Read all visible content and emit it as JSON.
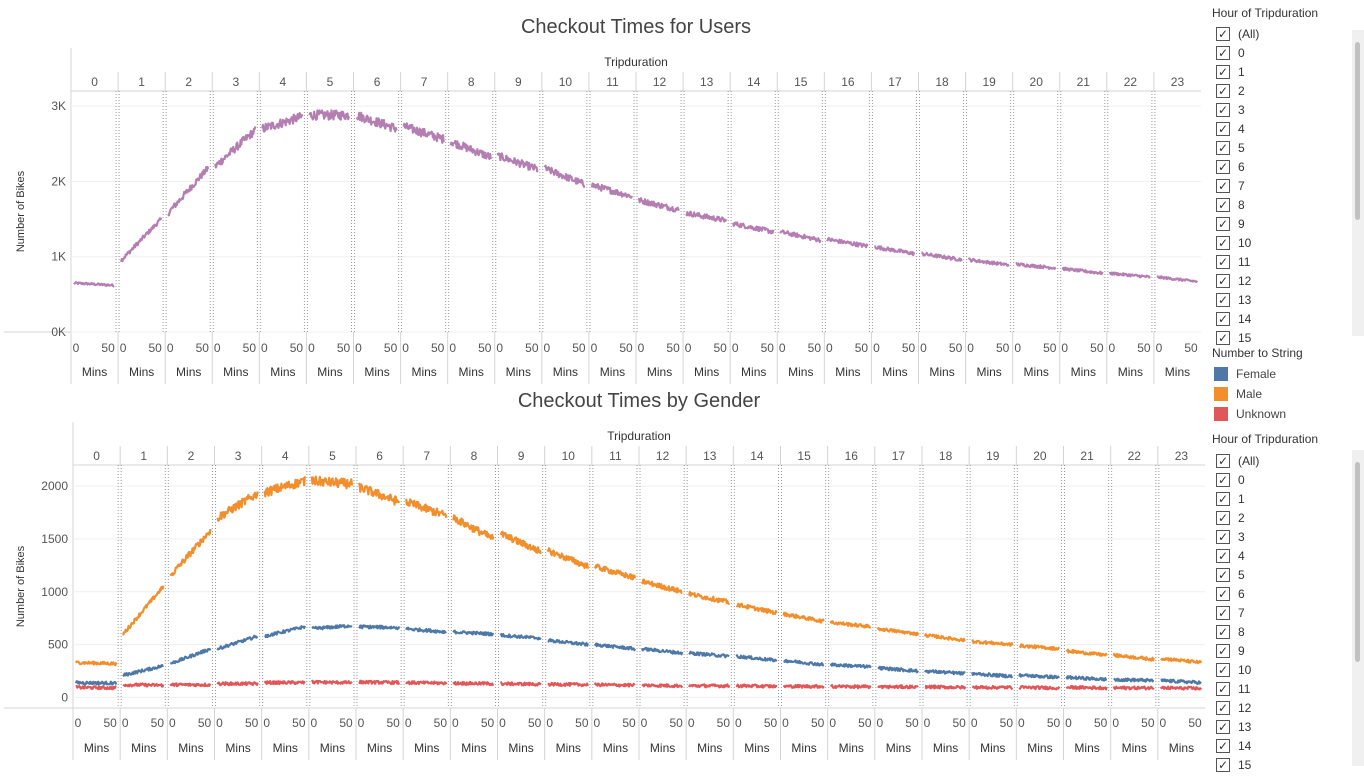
{
  "chart_data": [
    {
      "type": "line",
      "title": "Checkout Times for Users",
      "column_header": "Tripduration",
      "panels": [
        "0",
        "1",
        "2",
        "3",
        "4",
        "5",
        "6",
        "7",
        "8",
        "9",
        "10",
        "11",
        "12",
        "13",
        "14",
        "15",
        "16",
        "17",
        "18",
        "19",
        "20",
        "21",
        "22",
        "23"
      ],
      "panel_axis_ticks": [
        "0",
        "50"
      ],
      "panel_axis_label": "Mins",
      "ylabel": "Number of Bikes",
      "ylim": [
        0,
        3200
      ],
      "yticks": [
        {
          "value": 0,
          "label": "0K"
        },
        {
          "value": 1000,
          "label": "1K"
        },
        {
          "value": 2000,
          "label": "2K"
        },
        {
          "value": 3000,
          "label": "3K"
        }
      ],
      "series": [
        {
          "color": "#b57eb3",
          "start": [
            650,
            950,
            1580,
            2200,
            2700,
            2880,
            2880,
            2730,
            2530,
            2340,
            2170,
            1950,
            1750,
            1580,
            1440,
            1330,
            1230,
            1130,
            1040,
            960,
            900,
            840,
            780,
            730
          ],
          "end": [
            620,
            1500,
            2180,
            2680,
            2860,
            2880,
            2700,
            2560,
            2320,
            2160,
            1960,
            1800,
            1620,
            1480,
            1330,
            1220,
            1140,
            1040,
            960,
            890,
            850,
            780,
            730,
            670
          ]
        }
      ]
    },
    {
      "type": "line",
      "title": "Checkout Times by Gender",
      "column_header": "Tripduration",
      "panels": [
        "0",
        "1",
        "2",
        "3",
        "4",
        "5",
        "6",
        "7",
        "8",
        "9",
        "10",
        "11",
        "12",
        "13",
        "14",
        "15",
        "16",
        "17",
        "18",
        "19",
        "20",
        "21",
        "22",
        "23"
      ],
      "panel_axis_ticks": [
        "0",
        "50"
      ],
      "panel_axis_label": "Mins",
      "ylabel": "Number of Bikes",
      "ylim": [
        -100,
        2200
      ],
      "yticks": [
        {
          "value": 0,
          "label": "0"
        },
        {
          "value": 500,
          "label": "500"
        },
        {
          "value": 1000,
          "label": "1000"
        },
        {
          "value": 1500,
          "label": "1500"
        },
        {
          "value": 2000,
          "label": "2000"
        }
      ],
      "series": [
        {
          "name": "Male",
          "color": "#f28e2b",
          "start": [
            330,
            600,
            1150,
            1700,
            1940,
            2050,
            1990,
            1850,
            1700,
            1550,
            1390,
            1240,
            1100,
            980,
            880,
            790,
            710,
            650,
            590,
            530,
            490,
            440,
            400,
            370
          ],
          "end": [
            320,
            1050,
            1580,
            1930,
            2050,
            2020,
            1850,
            1720,
            1500,
            1380,
            1240,
            1130,
            1000,
            900,
            800,
            720,
            670,
            600,
            540,
            500,
            460,
            400,
            360,
            330
          ]
        },
        {
          "name": "Female",
          "color": "#4e79a7",
          "start": [
            140,
            210,
            320,
            460,
            580,
            650,
            670,
            650,
            620,
            590,
            540,
            500,
            460,
            420,
            390,
            350,
            310,
            280,
            250,
            225,
            210,
            190,
            170,
            160
          ],
          "end": [
            135,
            300,
            460,
            580,
            670,
            680,
            660,
            620,
            600,
            560,
            500,
            460,
            420,
            390,
            350,
            310,
            290,
            250,
            225,
            200,
            190,
            170,
            160,
            140
          ]
        },
        {
          "name": "Unknown",
          "color": "#e15759",
          "start": [
            95,
            120,
            120,
            130,
            140,
            145,
            145,
            140,
            135,
            130,
            125,
            120,
            115,
            110,
            110,
            105,
            105,
            100,
            100,
            95,
            95,
            95,
            90,
            90
          ],
          "end": [
            90,
            115,
            120,
            130,
            140,
            140,
            140,
            135,
            130,
            125,
            120,
            115,
            110,
            110,
            105,
            105,
            100,
            100,
            95,
            95,
            90,
            90,
            90,
            85
          ]
        }
      ]
    }
  ],
  "sidebar": {
    "filter_title": "Hour of Tripduration",
    "filter_items": [
      "(All)",
      "0",
      "1",
      "2",
      "3",
      "4",
      "5",
      "6",
      "7",
      "8",
      "9",
      "10",
      "11",
      "12",
      "13",
      "14",
      "15"
    ],
    "legend_title": "Number to String",
    "legend_items": [
      {
        "label": "Female",
        "color": "#4e79a7"
      },
      {
        "label": "Male",
        "color": "#f28e2b"
      },
      {
        "label": "Unknown",
        "color": "#e15759"
      }
    ]
  }
}
